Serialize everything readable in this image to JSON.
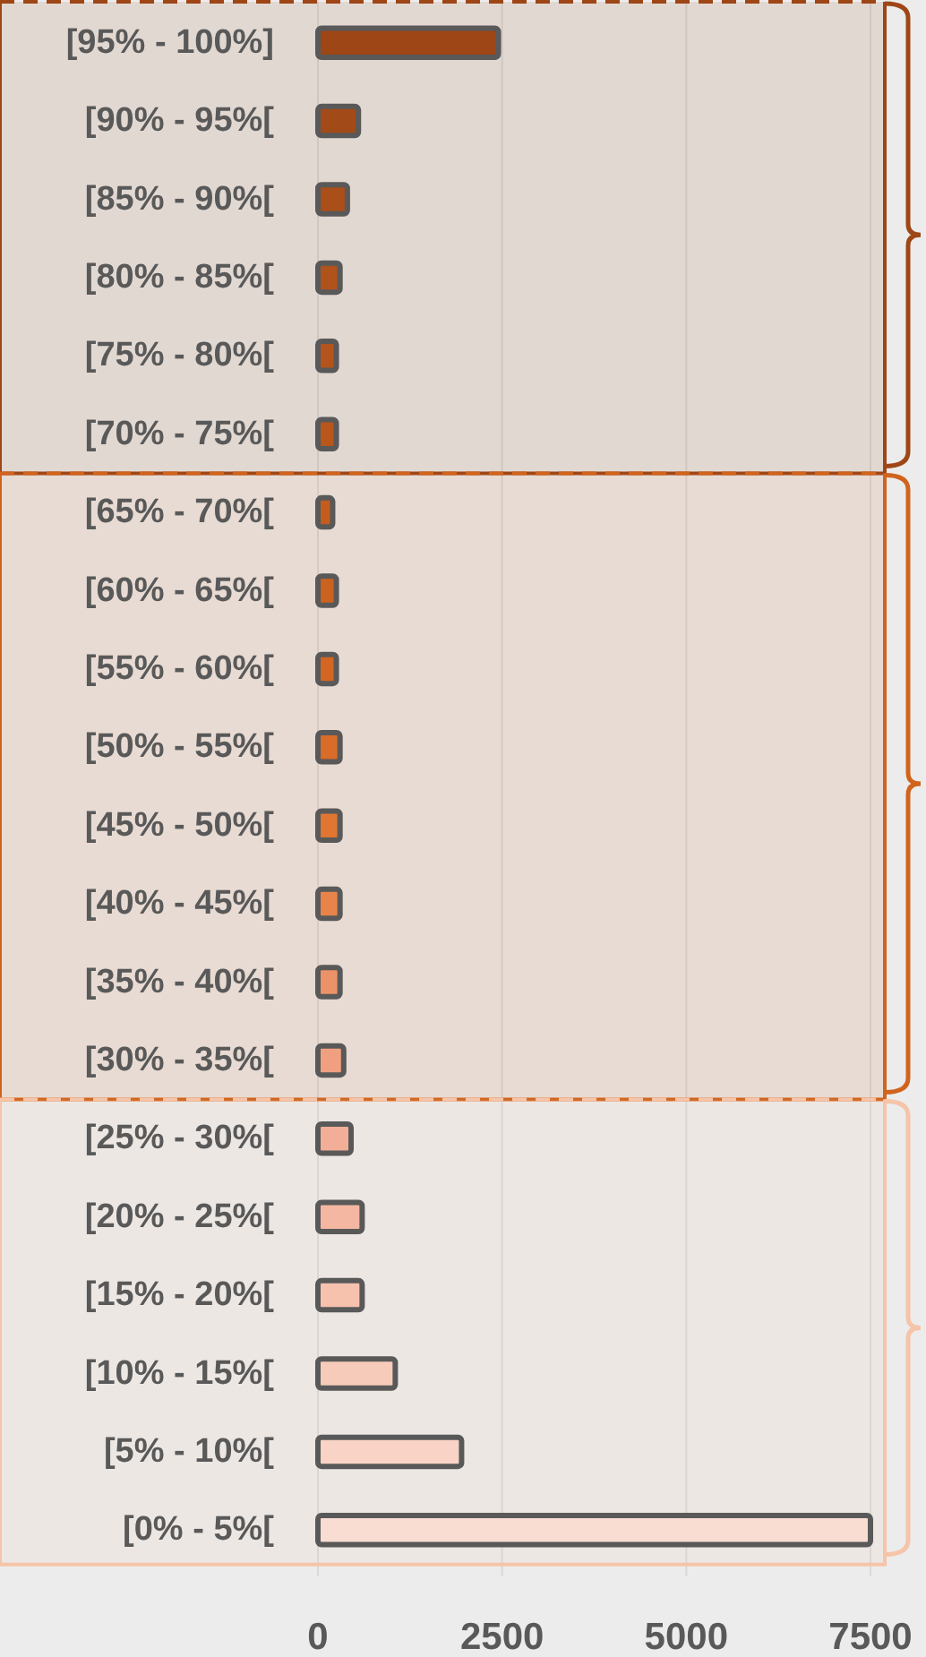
{
  "chart_data": {
    "type": "bar",
    "orientation": "horizontal",
    "categories": [
      "[95% - 100%]",
      "[90% - 95%[",
      "[85% - 90%[",
      "[80% - 85%[",
      "[75% - 80%[",
      "[70% - 75%[",
      "[65% - 70%[",
      "[60% - 65%[",
      "[55% - 60%[",
      "[50% - 55%[",
      "[45% - 50%[",
      "[40% - 45%[",
      "[35% - 40%[",
      "[30% - 35%[",
      "[25% - 30%[",
      "[20% - 25%[",
      "[15% - 20%[",
      "[10% - 15%[",
      "[5% - 10%[",
      "[0% - 5%["
    ],
    "values": [
      2450,
      550,
      400,
      300,
      250,
      250,
      200,
      250,
      250,
      300,
      300,
      300,
      300,
      350,
      450,
      600,
      600,
      1050,
      1950,
      7500
    ],
    "bands": [
      {
        "axis": "y",
        "from": "[95% - 100%]",
        "to": "[70% - 75%[",
        "color": "#9e4616"
      },
      {
        "axis": "y",
        "from": "[65% - 70%[",
        "to": "[30% - 35%[",
        "color": "#d0641e"
      },
      {
        "axis": "y",
        "from": "[25% - 30%[",
        "to": "[0% - 5%[",
        "color": "#f6c4a8"
      }
    ],
    "colors": [
      "#9e4616",
      "#a24a18",
      "#aa4e1a",
      "#b0521c",
      "#b4541c",
      "#b8561c",
      "#c45c1e",
      "#cc6220",
      "#d26622",
      "#d86c28",
      "#e07632",
      "#e8844a",
      "#ec9268",
      "#f0a080",
      "#f2ae96",
      "#f4b8a2",
      "#f6c2ae",
      "#f7cbba",
      "#f8d3c6",
      "#f9dcd2"
    ],
    "xlim": [
      0,
      7500
    ],
    "xticks": [
      0,
      2500,
      5000,
      7500
    ],
    "grid": "x"
  }
}
